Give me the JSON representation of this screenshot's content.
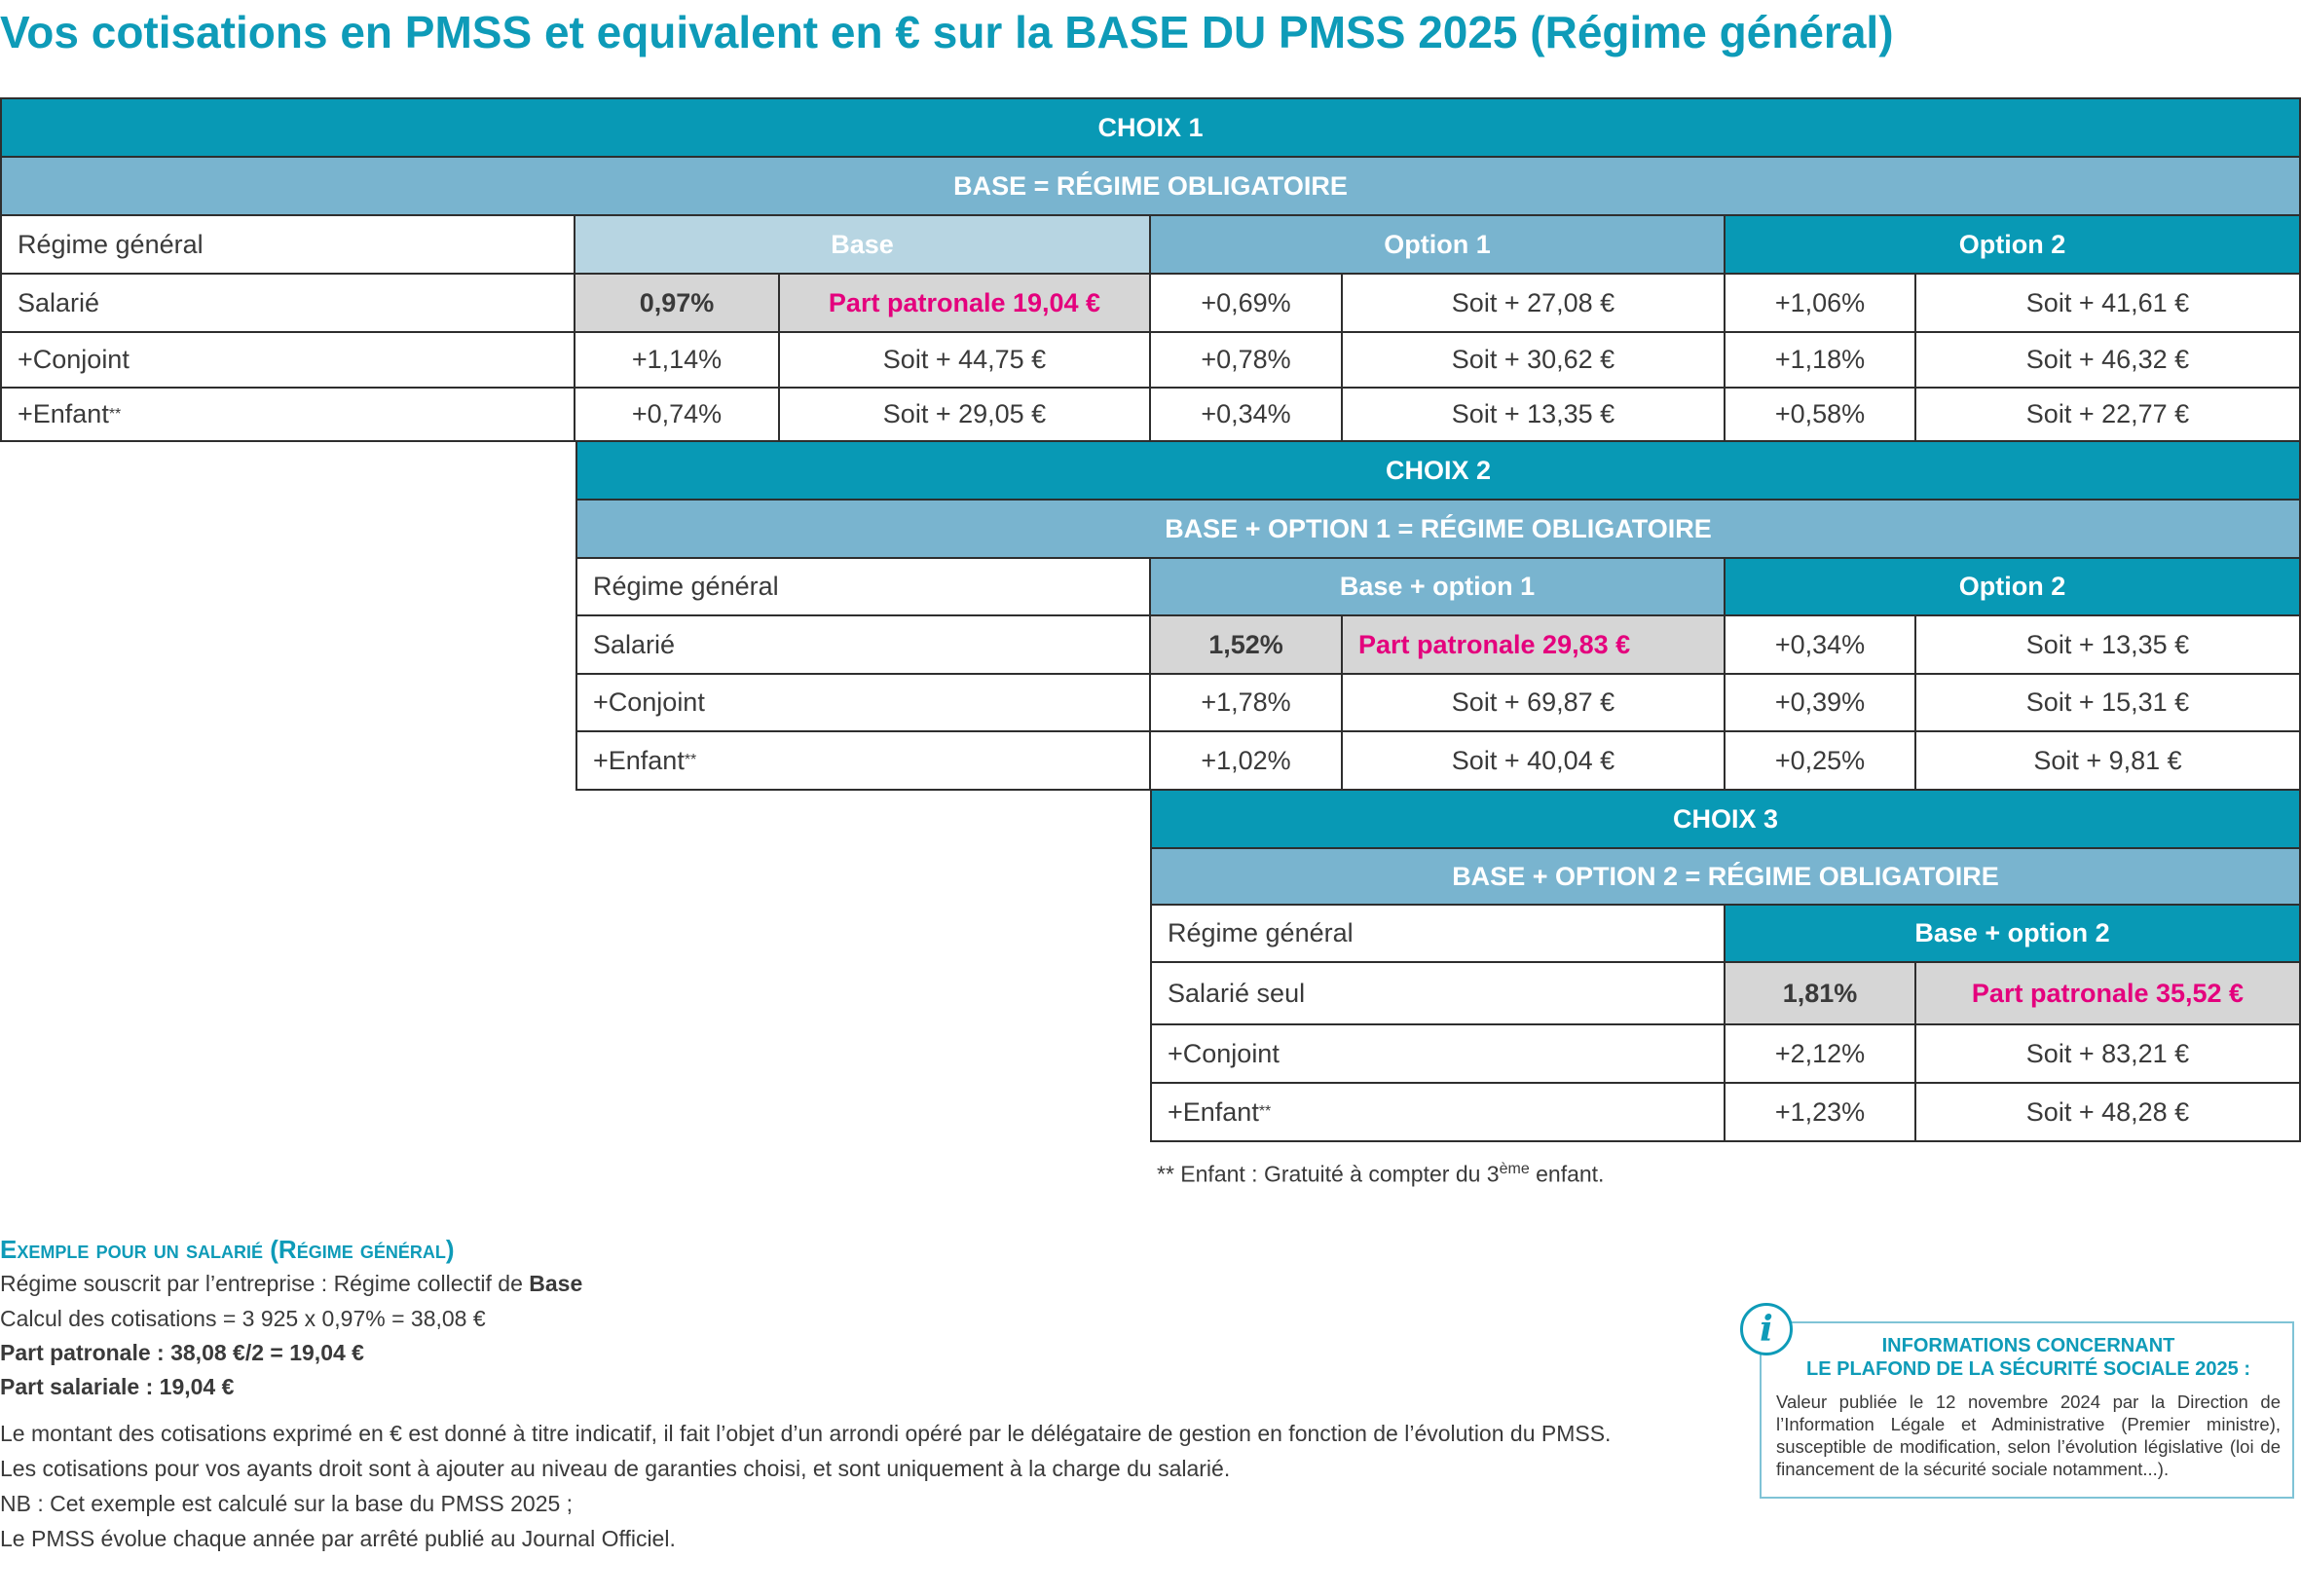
{
  "title": "Vos cotisations en PMSS et equivalent en € sur la BASE DU PMSS 2025 (Régime général)",
  "choix1": {
    "label": "CHOIX 1",
    "subtitle": "BASE = RÉGIME OBLIGATOIRE",
    "head": [
      "Régime général",
      "Base",
      "Option 1",
      "Option 2"
    ],
    "rows": [
      {
        "label": "Salarié",
        "sup": "",
        "c1": "0,97%",
        "c2": "Part patronale 19,04 €",
        "c3": "+0,69%",
        "c4": "Soit + 27,08 €",
        "c5": "+1,06%",
        "c6": "Soit + 41,61 €"
      },
      {
        "label": "+Conjoint",
        "sup": "",
        "c1": "+1,14%",
        "c2": "Soit + 44,75 €",
        "c3": "+0,78%",
        "c4": "Soit + 30,62 €",
        "c5": "+1,18%",
        "c6": "Soit + 46,32 €"
      },
      {
        "label": "+Enfant",
        "sup": "**",
        "c1": "+0,74%",
        "c2": "Soit + 29,05 €",
        "c3": "+0,34%",
        "c4": "Soit + 13,35 €",
        "c5": "+0,58%",
        "c6": "Soit + 22,77 €"
      }
    ]
  },
  "choix2": {
    "label": "CHOIX 2",
    "subtitle": "BASE + OPTION 1 = RÉGIME OBLIGATOIRE",
    "head": [
      "Régime général",
      "Base + option 1",
      "Option 2"
    ],
    "rows": [
      {
        "label": "Salarié",
        "sup": "",
        "c1": "1,52%",
        "c2": "Part patronale 29,83 €",
        "c3": "+0,34%",
        "c4": "Soit + 13,35 €"
      },
      {
        "label": "+Conjoint",
        "sup": "",
        "c1": "+1,78%",
        "c2": "Soit + 69,87 €",
        "c3": "+0,39%",
        "c4": "Soit + 15,31 €"
      },
      {
        "label": "+Enfant",
        "sup": "**",
        "c1": "+1,02%",
        "c2": "Soit + 40,04 €",
        "c3": "+0,25%",
        "c4": "Soit + 9,81 €"
      }
    ]
  },
  "choix3": {
    "label": "CHOIX 3",
    "subtitle": "BASE + OPTION 2 = RÉGIME OBLIGATOIRE",
    "head": [
      "Régime général",
      "Base + option 2"
    ],
    "rows": [
      {
        "label": "Salarié seul",
        "sup": "",
        "c1": "1,81%",
        "c2": "Part patronale 35,52 €"
      },
      {
        "label": "+Conjoint",
        "sup": "",
        "c1": "+2,12%",
        "c2": "Soit + 83,21 €"
      },
      {
        "label": "+Enfant",
        "sup": "**",
        "c1": "+1,23%",
        "c2": "Soit + 48,28 €"
      }
    ]
  },
  "footnote": {
    "stars": "**",
    "text_before": " Enfant : Gratuité à compter du 3",
    "sup": "ème",
    "text_after": " enfant."
  },
  "example": {
    "title": "Exemple pour un salarié (Régime général)",
    "line1_prefix": "Régime souscrit par l’entreprise : Régime collectif de ",
    "line1_bold": "Base",
    "line2": "Calcul des cotisations = 3 925 x 0,97% = 38,08 €",
    "line3": "Part patronale : 38,08 €/2 = 19,04 €",
    "line4": "Part salariale : 19,04 €",
    "line5": "Le montant des cotisations exprimé en € est donné à titre indicatif, il fait l’objet d’un arrondi opéré par le délégataire de gestion en fonction de l’évolution du PMSS.",
    "line6": "Les cotisations pour vos ayants droit sont à ajouter au niveau de garanties choisi, et sont uniquement à la charge du salarié.",
    "line7": "NB : Cet exemple est calculé sur la base du PMSS 2025 ;",
    "line8": "Le PMSS évolue chaque année par arrêté publié au Journal Officiel."
  },
  "info": {
    "icon": "i",
    "title1": "INFORMATIONS CONCERNANT",
    "title2": "LE PLAFOND DE LA SÉCURITÉ SOCIALE 2025 :",
    "text": "Valeur publiée le 12 novembre 2024 par la Direction de l’Information Légale et Administrative (Premier ministre), susceptible de modification, selon l’évolution législative (loi de financement de la sécurité sociale notamment...)."
  },
  "colors": {
    "accent": "#0e9bb8",
    "header_dark": "#0899b5",
    "header_mid": "#79b4cf",
    "header_light": "#b7d5e2",
    "highlight": "#e4007d",
    "grey_cell": "#d6d6d6"
  }
}
